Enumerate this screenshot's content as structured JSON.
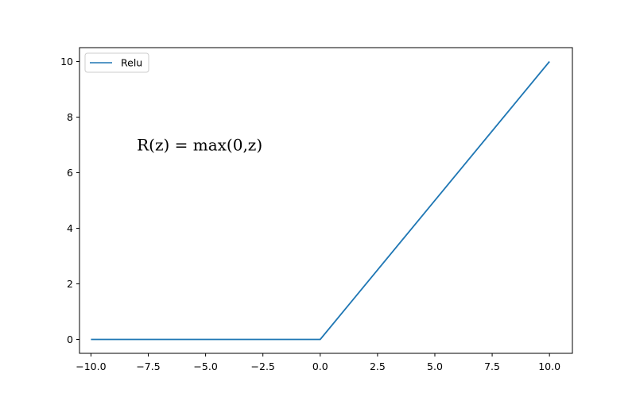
{
  "chart_data": {
    "type": "line",
    "title": "",
    "xlabel": "",
    "ylabel": "",
    "xlim": [
      -10.5,
      11
    ],
    "ylim": [
      -0.5,
      10.5
    ],
    "xticks": [
      -10,
      -7.5,
      -5,
      -2.5,
      0,
      2.5,
      5,
      7.5,
      10
    ],
    "xtick_labels": [
      "−10.0",
      "−7.5",
      "−5.0",
      "−2.5",
      "0.0",
      "2.5",
      "5.0",
      "7.5",
      "10.0"
    ],
    "yticks": [
      0,
      2,
      4,
      6,
      8,
      10
    ],
    "ytick_labels": [
      "0",
      "2",
      "4",
      "6",
      "8",
      "10"
    ],
    "grid": false,
    "legend_position": "top-left",
    "series": [
      {
        "name": "Relu",
        "color": "#1f77b4",
        "x": [
          -10,
          0,
          10
        ],
        "y": [
          0,
          0,
          10
        ]
      }
    ],
    "annotations": [
      {
        "text": "R(z) = max(0,z)",
        "x": -8,
        "y": 7
      }
    ]
  }
}
